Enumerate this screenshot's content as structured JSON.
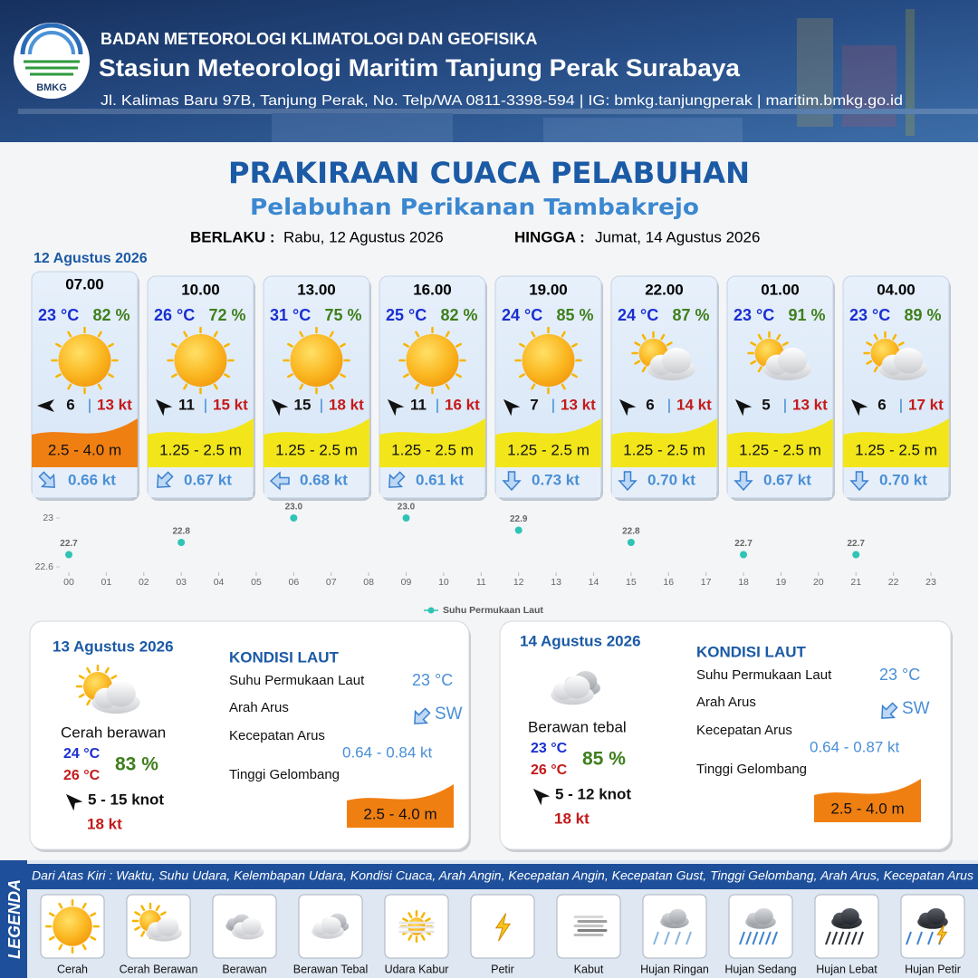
{
  "header": {
    "agency": "BADAN METEOROLOGI KLIMATOLOGI DAN GEOFISIKA",
    "station": "Stasiun Meteorologi Maritim Tanjung Perak Surabaya",
    "address": "Jl. Kalimas Baru 97B, Tanjung Perak, No. Telp/WA 0811-3398-594 | IG: bmkg.tanjungperak | maritim.bmkg.go.id",
    "logo_text": "BMKG"
  },
  "title": "PRAKIRAAN CUACA PELABUHAN",
  "subtitle": "Pelabuhan Perikanan Tambakrejo",
  "validity": {
    "from_label": "BERLAKU :",
    "from": "Rabu, 12 Agustus 2026",
    "to_label": "HINGGA :",
    "to": "Jumat, 14 Agustus 2026"
  },
  "day1": {
    "date": "12 Agustus 2026",
    "separator": "|",
    "cards": [
      {
        "time": "07.00",
        "temperature": "23 °C",
        "humidity": "82 %",
        "wind_speed": "6",
        "gust": "13 kt",
        "wave": "2.5 - 4.0 m",
        "current": "0.66 kt"
      },
      {
        "time": "10.00",
        "temperature": "26 °C",
        "humidity": "72 %",
        "wind_speed": "11",
        "gust": "15 kt",
        "wave": "1.25 - 2.5 m",
        "current": "0.67 kt"
      },
      {
        "time": "13.00",
        "temperature": "31 °C",
        "humidity": "75 %",
        "wind_speed": "15",
        "gust": "18 kt",
        "wave": "1.25 - 2.5 m",
        "current": "0.68 kt"
      },
      {
        "time": "16.00",
        "temperature": "25 °C",
        "humidity": "82 %",
        "wind_speed": "11",
        "gust": "16 kt",
        "wave": "1.25 - 2.5 m",
        "current": "0.61 kt"
      },
      {
        "time": "19.00",
        "temperature": "24 °C",
        "humidity": "85 %",
        "wind_speed": "7",
        "gust": "13 kt",
        "wave": "1.25 - 2.5 m",
        "current": "0.73 kt"
      },
      {
        "time": "22.00",
        "temperature": "24 °C",
        "humidity": "87 %",
        "wind_speed": "6",
        "gust": "14 kt",
        "wave": "1.25 - 2.5 m",
        "current": "0.70 kt"
      },
      {
        "time": "01.00",
        "temperature": "23 °C",
        "humidity": "91 %",
        "wind_speed": "5",
        "gust": "13 kt",
        "wave": "1.25 - 2.5 m",
        "current": "0.67 kt"
      },
      {
        "time": "04.00",
        "temperature": "23 °C",
        "humidity": "89 %",
        "wind_speed": "6",
        "gust": "17 kt",
        "wave": "1.25 - 2.5 m",
        "current": "0.70 kt"
      }
    ]
  },
  "chart_data": {
    "type": "scatter",
    "x": [
      0,
      3,
      6,
      9,
      12,
      15,
      18,
      21
    ],
    "series": [
      {
        "name": "Suhu Permukaan Laut",
        "color": "#2ec4b6",
        "values": [
          22.7,
          22.8,
          23.0,
          23.0,
          22.9,
          22.8,
          22.7,
          22.7
        ],
        "value_labels": [
          "22.7",
          "22.8",
          "23.0",
          "23.0",
          "22.9",
          "22.8",
          "22.7",
          "22.7"
        ]
      }
    ],
    "xlim": [
      0,
      23
    ],
    "xticks": [
      {
        "value": 0,
        "label": "00"
      },
      {
        "value": 1,
        "label": "01"
      },
      {
        "value": 2,
        "label": "02"
      },
      {
        "value": 3,
        "label": "03"
      },
      {
        "value": 4,
        "label": "04"
      },
      {
        "value": 5,
        "label": "05"
      },
      {
        "value": 6,
        "label": "06"
      },
      {
        "value": 7,
        "label": "07"
      },
      {
        "value": 8,
        "label": "08"
      },
      {
        "value": 9,
        "label": "09"
      },
      10,
      11,
      12,
      13,
      14,
      15,
      16,
      17,
      18,
      19,
      20,
      21,
      22,
      23
    ],
    "ylim": [
      22.6,
      23
    ],
    "yticks": [
      22.6,
      23
    ]
  },
  "day2": {
    "date": "13 Agustus 2026",
    "condition": "Cerah berawan",
    "temp_min": "24 °C",
    "temp_max": "26 °C",
    "humidity": "83 %",
    "wind": "5  - 15 knot",
    "gust": "18 kt",
    "sea_title": "KONDISI LAUT",
    "sst_label": "Suhu Permukaan Laut",
    "sst": "23 °C",
    "current_dir_label": "Arah Arus",
    "current_dir": "SW",
    "current_speed_label": "Kecepatan Arus",
    "current_speed": "0.64  - 0.84 kt",
    "wave_label": "Tinggi Gelombang",
    "wave": "2.5 - 4.0 m"
  },
  "day3": {
    "date": "14 Agustus 2026",
    "condition": "Berawan tebal",
    "temp_min": "23 °C",
    "temp_max": "26 °C",
    "humidity": "85 %",
    "wind": "5  - 12 knot",
    "gust": "18 kt",
    "sea_title": "KONDISI LAUT",
    "sst_label": "Suhu Permukaan Laut",
    "sst": "23 °C",
    "current_dir_label": "Arah Arus",
    "current_dir": "SW",
    "current_speed_label": "Kecepatan Arus",
    "current_speed": "0.64  - 0.87 kt",
    "wave_label": "Tinggi Gelombang",
    "wave": "2.5 - 4.0 m"
  },
  "legend": {
    "title": "LEGENDA",
    "description": "Dari Atas Kiri : Waktu, Suhu Udara, Kelembapan Udara, Kondisi Cuaca, Arah Angin, Kecepatan Angin, Kecepatan Gust, Tinggi Gelombang, Arah Arus, Kecepatan Arus",
    "items": [
      "Cerah",
      "Cerah Berawan",
      "Berawan",
      "Berawan Tebal",
      "Udara Kabur",
      "Petir",
      "Kabut",
      "Hujan Ringan",
      "Hujan Sedang",
      "Hujan Lebat",
      "Hujan Petir"
    ]
  }
}
